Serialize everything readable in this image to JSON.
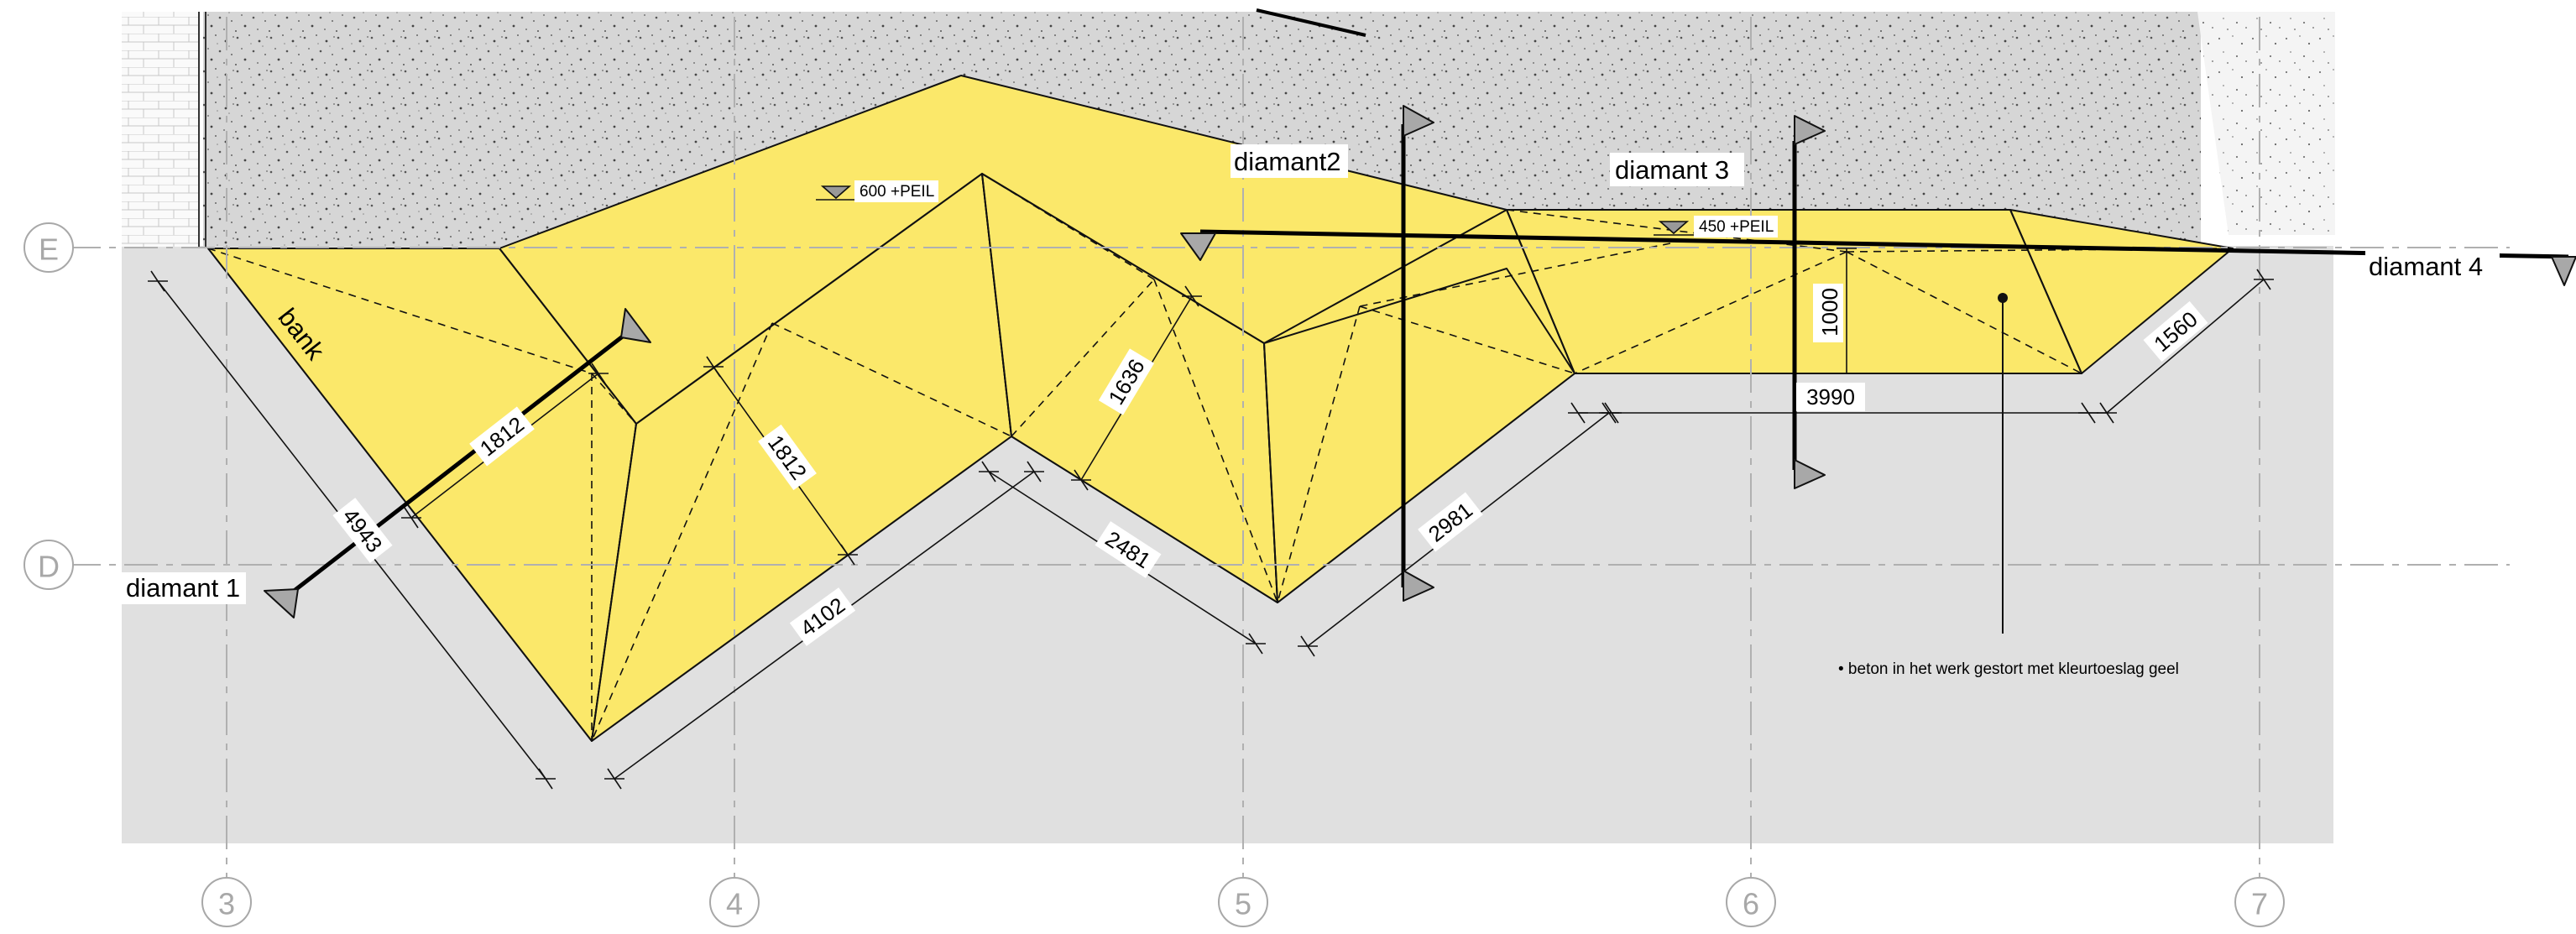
{
  "grid": {
    "columns": [
      "3",
      "4",
      "5",
      "6",
      "7"
    ],
    "rows": [
      "E",
      "D"
    ]
  },
  "sections": {
    "d1": "diamant 1",
    "d2": "diamant2",
    "d3": "diamant 3",
    "d4": "diamant 4"
  },
  "labels": {
    "bank": "bank",
    "peil_600": "600 +PEIL",
    "peil_450": "450 +PEIL",
    "note": "• beton in het werk gestort met kleurtoeslag geel"
  },
  "dimensions": {
    "d4943": "4943",
    "d1812a": "1812",
    "d1812b": "1812",
    "d4102": "4102",
    "d1636": "1636",
    "d2481": "2481",
    "d2981": "2981",
    "d1000": "1000",
    "d3990": "3990",
    "d1560": "1560"
  },
  "colors": {
    "concrete_fill": "#fbe86a",
    "ground_fill": "#e0e0e0",
    "gravel_fill": "#d8d8d8",
    "grid_line": "#b0b0b0"
  }
}
